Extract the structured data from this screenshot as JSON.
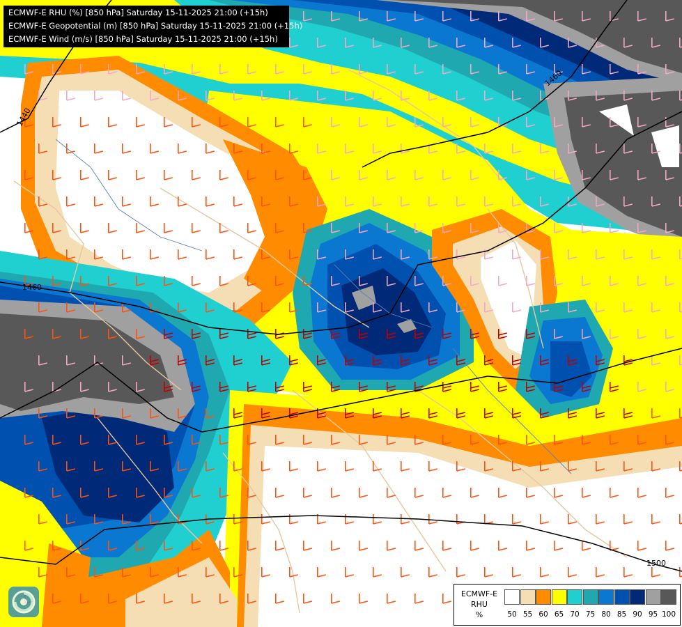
{
  "title_lines": [
    "ECMWF-E RHU (%) [850 hPa] Saturday 15-11-2025 21:00 (+15h)",
    "ECMWF-E Geopotential (m) [850 hPa] Saturday 15-11-2025 21:00 (+15h)",
    "ECMWF-E Wind (m/s) [850 hPa] Saturday 15-11-2025 21:00 (+15h)"
  ],
  "legend": {
    "line1": "ECMWF-E",
    "line2": "RHU",
    "unit": "%",
    "ticks": [
      "50",
      "55",
      "60",
      "65",
      "70",
      "75",
      "80",
      "85",
      "90",
      "95",
      "100"
    ],
    "colors": [
      "#ffffff",
      "#f5deb3",
      "#ff8c00",
      "#ffff00",
      "#20d0d0",
      "#20a8b0",
      "#0a78d0",
      "#0050b0",
      "#002a78",
      "#a0a0a0",
      "#585858"
    ]
  },
  "contour_labels": [
    "1440",
    "1460",
    "1460",
    "1500"
  ],
  "palette": {
    "white": "#ffffff",
    "tan": "#f5deb3",
    "orange": "#ff8c00",
    "yellow": "#ffff00",
    "cyan": "#20d0d0",
    "teal": "#20a8b0",
    "blue": "#0a78d0",
    "darkblue": "#0050b0",
    "navy": "#002a78",
    "grey": "#a0a0a0",
    "darkgrey": "#585858",
    "border": "#e6c8a0",
    "river": "#5a7fbf",
    "barb_weak": "#f4a8c8",
    "barb_mid": "#ff5010",
    "barb_strong": "#c00000"
  },
  "logo_icon": "ecmwf-logo-icon"
}
